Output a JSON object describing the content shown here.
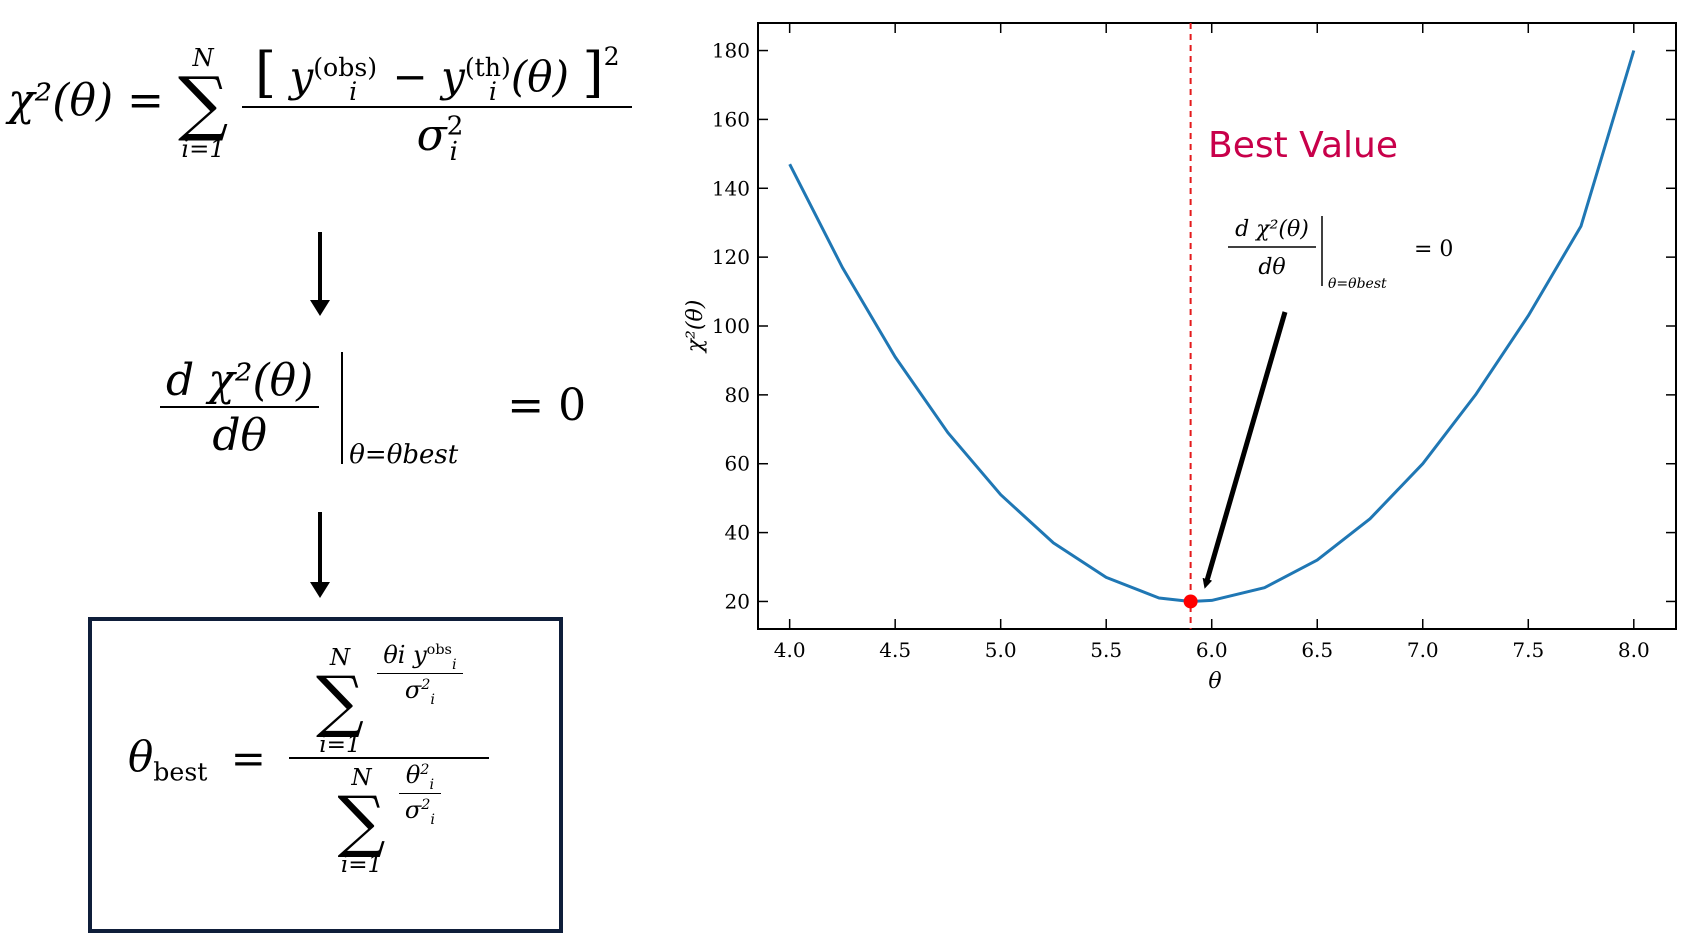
{
  "equations": {
    "chi2_definition": {
      "lhs": "χ²(θ)",
      "equals": "=",
      "sum_upper": "N",
      "sum_lower": "i=1",
      "numerator": "[ y_i^(obs) − y_i^(th)(θ) ]²",
      "numerator_y_obs": "y",
      "numerator_sup_obs": "(obs)",
      "numerator_sub_obs": "i",
      "numerator_minus": "−",
      "numerator_y_th": "y",
      "numerator_sup_th": "(th)",
      "numerator_sub_th": "i",
      "numerator_arg": "(θ)",
      "numerator_power": "2",
      "denominator": "σ",
      "denominator_sup": "2",
      "denominator_sub": "i"
    },
    "derivative_condition": {
      "numerator": "d χ²(θ)",
      "denominator": "dθ",
      "evaluated_at": "θ=θbest",
      "rhs": "= 0"
    },
    "best_fit": {
      "lhs": "θ",
      "lhs_sub": "best",
      "equals": "=",
      "sum_upper": "N",
      "sum_lower": "i=1",
      "num_inner_numerator": "θi y",
      "num_inner_sup": "obs",
      "num_inner_sub": "i",
      "num_inner_denominator": "σ",
      "den_inner_numerator": "θ",
      "den_inner_denominator": "σ",
      "power": "2",
      "index": "i"
    }
  },
  "annotation": {
    "best_value_label": "Best Value",
    "best_value_color": "#c8004a",
    "derivative_numerator": "d χ²(θ)",
    "derivative_denominator": "dθ",
    "derivative_eval": "θ=θbest",
    "derivative_rhs": "= 0"
  },
  "chart_data": {
    "type": "line",
    "xlabel": "θ",
    "ylabel": "χ²(θ)",
    "xlim": [
      3.85,
      8.2
    ],
    "ylim": [
      12,
      188
    ],
    "xticks": [
      4.0,
      4.5,
      5.0,
      5.5,
      6.0,
      6.5,
      7.0,
      7.5,
      8.0
    ],
    "xtick_labels": [
      "4.0",
      "4.5",
      "5.0",
      "5.5",
      "6.0",
      "6.5",
      "7.0",
      "7.5",
      "8.0"
    ],
    "yticks": [
      20,
      40,
      60,
      80,
      100,
      120,
      140,
      160,
      180
    ],
    "ytick_labels": [
      "20",
      "40",
      "60",
      "80",
      "100",
      "120",
      "140",
      "160",
      "180"
    ],
    "grid": false,
    "series": [
      {
        "color": "#1f77b4",
        "x": [
          4.0,
          4.25,
          4.5,
          4.75,
          5.0,
          5.25,
          5.5,
          5.75,
          5.9,
          6.0,
          6.25,
          6.5,
          6.75,
          7.0,
          7.25,
          7.5,
          7.75,
          8.0
        ],
        "y": [
          147,
          117,
          91,
          69,
          51,
          37,
          27,
          21,
          20,
          20.3,
          24,
          32,
          44,
          60,
          80,
          103,
          129,
          180
        ]
      }
    ],
    "best_theta": 5.9,
    "best_chi2": 20,
    "best_line_color": "#e41a1c",
    "best_point_color": "#ff0000"
  }
}
